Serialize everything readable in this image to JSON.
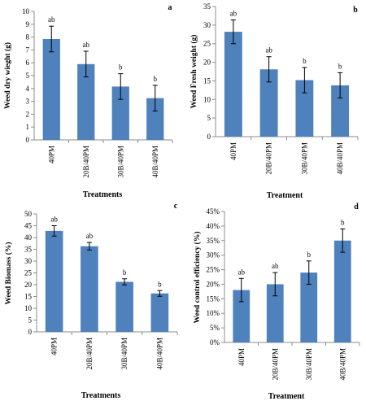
{
  "chart_data": [
    {
      "panel": "a",
      "type": "bar",
      "categories": [
        "40PM",
        "20B/40PM",
        "30B/40PM",
        "40B/40PM"
      ],
      "values": [
        7.85,
        5.9,
        4.15,
        3.25
      ],
      "errors": [
        1.0,
        1.0,
        1.0,
        1.0
      ],
      "significance": [
        "ab",
        "ab",
        "b",
        "b"
      ],
      "title": "",
      "xlabel": "Treatments",
      "ylabel": "Weed dry wieght (g)",
      "ylim": [
        0,
        10
      ],
      "yticks": [
        0,
        1,
        2,
        3,
        4,
        5,
        6,
        7,
        8,
        9,
        10
      ],
      "ytick_suffix": "",
      "bar_color": "#4f81bd"
    },
    {
      "panel": "b",
      "type": "bar",
      "categories": [
        "40PM",
        "20B/40PM",
        "30B/40PM",
        "40B/40PM"
      ],
      "values": [
        28.2,
        18.1,
        15.2,
        13.8
      ],
      "errors": [
        3.2,
        3.4,
        3.4,
        3.4
      ],
      "significance": [
        "ab",
        "ab",
        "b",
        "b"
      ],
      "title": "",
      "xlabel": "Treatment",
      "ylabel": "Weed Fresh weight (g)",
      "ylim": [
        0,
        35
      ],
      "yticks": [
        0,
        5,
        10,
        15,
        20,
        25,
        30,
        35
      ],
      "ytick_suffix": "",
      "bar_color": "#4f81bd"
    },
    {
      "panel": "c",
      "type": "bar",
      "categories": [
        "40PM",
        "20B/40PM",
        "30B/40PM",
        "40B/40PM"
      ],
      "values": [
        42.8,
        36.3,
        21.2,
        16.3
      ],
      "errors": [
        2.2,
        1.6,
        1.3,
        1.2
      ],
      "significance": [
        "ab",
        "ab",
        "b",
        "b"
      ],
      "title": "",
      "xlabel": "Treatments",
      "ylabel": "Weed Biomass (%)",
      "ylim": [
        0,
        50
      ],
      "yticks": [
        0,
        5,
        10,
        15,
        20,
        25,
        30,
        35,
        40,
        45,
        50
      ],
      "ytick_suffix": "",
      "bar_color": "#4f81bd"
    },
    {
      "panel": "d",
      "type": "bar",
      "categories": [
        "40PM",
        "20B/40PM",
        "30B/40PM",
        "40B/40PM"
      ],
      "values": [
        18.0,
        20.0,
        24.0,
        35.0
      ],
      "errors": [
        4.0,
        4.0,
        4.0,
        4.0
      ],
      "significance": [
        "ab",
        "ab",
        "b",
        "b"
      ],
      "title": "",
      "xlabel": "Treatment",
      "ylabel": "Weed control efficiency (%)",
      "ylim": [
        0,
        45
      ],
      "yticks": [
        0,
        5,
        10,
        15,
        20,
        25,
        30,
        35,
        40,
        45
      ],
      "ytick_suffix": "%",
      "bar_color": "#4f81bd"
    }
  ]
}
